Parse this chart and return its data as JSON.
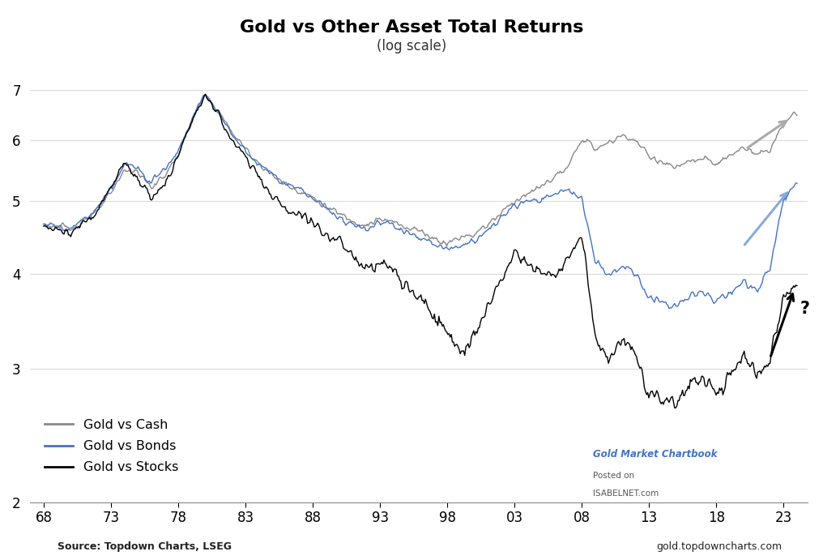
{
  "title": "Gold vs Other Asset Total Returns",
  "subtitle": "(log scale)",
  "source_left": "Source: Topdown Charts, LSEG",
  "source_right": "gold.topdowncharts.com",
  "watermark_line1": "Gold Market Chartbook",
  "watermark_line2": "Posted on",
  "watermark_line3": "ISABELNET.com",
  "ylim": [
    2.0,
    7.8
  ],
  "yticks": [
    2,
    3,
    4,
    5,
    6,
    7
  ],
  "xtick_labels": [
    "68",
    "73",
    "78",
    "83",
    "88",
    "93",
    "98",
    "03",
    "08",
    "13",
    "18",
    "23"
  ],
  "legend_labels": [
    "Gold vs Cash",
    "Gold vs Bonds",
    "Gold vs Stocks"
  ],
  "line_colors": [
    "#888888",
    "#4472c4",
    "#000000"
  ],
  "background_color": "#ffffff",
  "arrow_cash_color": "#aaaaaa",
  "arrow_bonds_color": "#88aadd",
  "arrow_stocks_color": "#000000"
}
